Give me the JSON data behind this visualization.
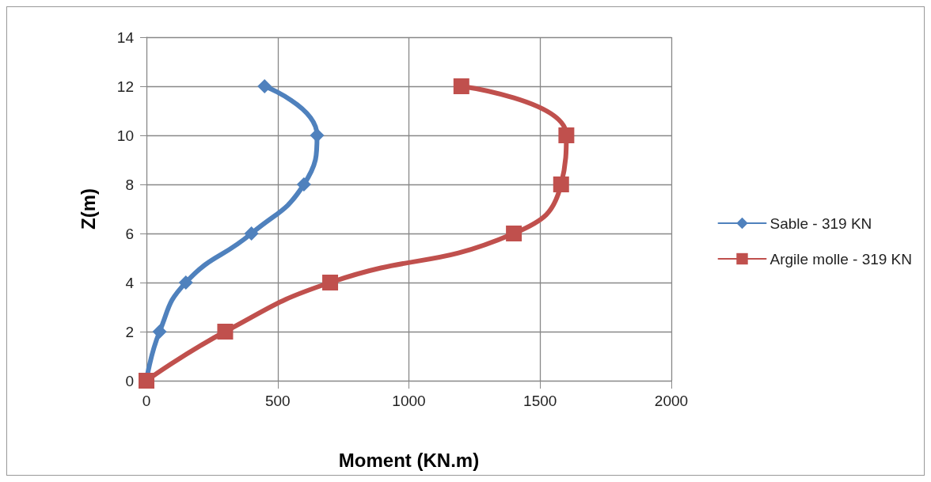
{
  "chart_data": {
    "type": "line",
    "xlabel": "Moment (KN.m)",
    "ylabel": "Z(m)",
    "xlim": [
      0,
      2000
    ],
    "xticks": [
      0,
      500,
      1000,
      1500,
      2000
    ],
    "ylim": [
      0,
      14
    ],
    "yticks": [
      0,
      2,
      4,
      6,
      8,
      10,
      12,
      14
    ],
    "grid": true,
    "legend": "right",
    "series": [
      {
        "name": "Sable - 319 KN",
        "color": "#4f81bd",
        "marker": "diamond",
        "x": [
          0,
          50,
          150,
          400,
          600,
          650,
          450
        ],
        "values": [
          0,
          2,
          4,
          6,
          8,
          10,
          12
        ]
      },
      {
        "name": "Argile molle - 319 KN",
        "color": "#c0504d",
        "marker": "square",
        "x": [
          0,
          300,
          700,
          1400,
          1580,
          1600,
          1200
        ],
        "values": [
          0,
          2,
          4,
          6,
          8,
          10,
          12
        ]
      }
    ]
  }
}
